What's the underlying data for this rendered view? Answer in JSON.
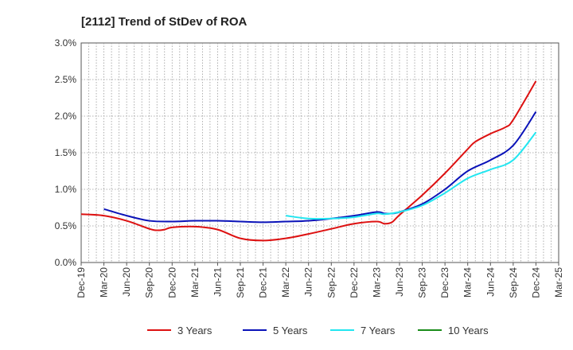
{
  "chart_data": {
    "type": "line",
    "title": "[2112]  Trend of StDev of ROA",
    "xlabel": "",
    "ylabel": "",
    "x_ticks": [
      "Dec-19",
      "Mar-20",
      "Jun-20",
      "Sep-20",
      "Dec-20",
      "Mar-21",
      "Jun-21",
      "Sep-21",
      "Dec-21",
      "Mar-22",
      "Jun-22",
      "Sep-22",
      "Dec-22",
      "Mar-23",
      "Jun-23",
      "Sep-23",
      "Dec-23",
      "Mar-24",
      "Jun-24",
      "Sep-24",
      "Dec-24",
      "Mar-25"
    ],
    "y_ticks": [
      "0.0%",
      "0.5%",
      "1.0%",
      "1.5%",
      "2.0%",
      "2.5%",
      "3.0%"
    ],
    "ylim": [
      0,
      3.0
    ],
    "grid": true,
    "legend_position": "bottom",
    "series": [
      {
        "name": "3 Years",
        "color": "#dd1111",
        "points": [
          [
            "Dec-19",
            0.66
          ],
          [
            "Mar-20",
            0.64
          ],
          [
            "Jun-20",
            0.57
          ],
          [
            "Sep-20",
            0.46
          ],
          [
            "Oct-20",
            0.44
          ],
          [
            "Nov-20",
            0.45
          ],
          [
            "Dec-20",
            0.48
          ],
          [
            "Mar-21",
            0.49
          ],
          [
            "Jun-21",
            0.45
          ],
          [
            "Sep-21",
            0.33
          ],
          [
            "Dec-21",
            0.3
          ],
          [
            "Mar-22",
            0.33
          ],
          [
            "Jun-22",
            0.39
          ],
          [
            "Sep-22",
            0.46
          ],
          [
            "Dec-22",
            0.53
          ],
          [
            "Mar-23",
            0.56
          ],
          [
            "Apr-23",
            0.53
          ],
          [
            "May-23",
            0.55
          ],
          [
            "Jun-23",
            0.65
          ],
          [
            "Sep-23",
            0.92
          ],
          [
            "Dec-23",
            1.22
          ],
          [
            "Mar-24",
            1.55
          ],
          [
            "Apr-24",
            1.65
          ],
          [
            "Jun-24",
            1.76
          ],
          [
            "Aug-24",
            1.85
          ],
          [
            "Sep-24",
            1.95
          ],
          [
            "Dec-24",
            2.48
          ]
        ]
      },
      {
        "name": "5 Years",
        "color": "#0a12b8",
        "points": [
          [
            "Mar-20",
            0.73
          ],
          [
            "Jun-20",
            0.64
          ],
          [
            "Sep-20",
            0.57
          ],
          [
            "Dec-20",
            0.56
          ],
          [
            "Mar-21",
            0.57
          ],
          [
            "Jun-21",
            0.57
          ],
          [
            "Sep-21",
            0.56
          ],
          [
            "Dec-21",
            0.55
          ],
          [
            "Mar-22",
            0.56
          ],
          [
            "Jun-22",
            0.57
          ],
          [
            "Sep-22",
            0.6
          ],
          [
            "Dec-22",
            0.64
          ],
          [
            "Mar-23",
            0.69
          ],
          [
            "Apr-23",
            0.67
          ],
          [
            "May-23",
            0.67
          ],
          [
            "Jun-23",
            0.69
          ],
          [
            "Sep-23",
            0.8
          ],
          [
            "Dec-23",
            1.0
          ],
          [
            "Mar-24",
            1.25
          ],
          [
            "Jun-24",
            1.4
          ],
          [
            "Sep-24",
            1.6
          ],
          [
            "Dec-24",
            2.06
          ]
        ]
      },
      {
        "name": "7 Years",
        "color": "#22e6f0",
        "points": [
          [
            "Mar-22",
            0.64
          ],
          [
            "Jun-22",
            0.6
          ],
          [
            "Sep-22",
            0.6
          ],
          [
            "Dec-22",
            0.62
          ],
          [
            "Mar-23",
            0.67
          ],
          [
            "Apr-23",
            0.66
          ],
          [
            "Jun-23",
            0.69
          ],
          [
            "Sep-23",
            0.78
          ],
          [
            "Dec-23",
            0.95
          ],
          [
            "Mar-24",
            1.15
          ],
          [
            "Jun-24",
            1.27
          ],
          [
            "Sep-24",
            1.4
          ],
          [
            "Dec-24",
            1.78
          ]
        ]
      },
      {
        "name": "10 Years",
        "color": "#1a8c1a",
        "points": []
      }
    ]
  }
}
